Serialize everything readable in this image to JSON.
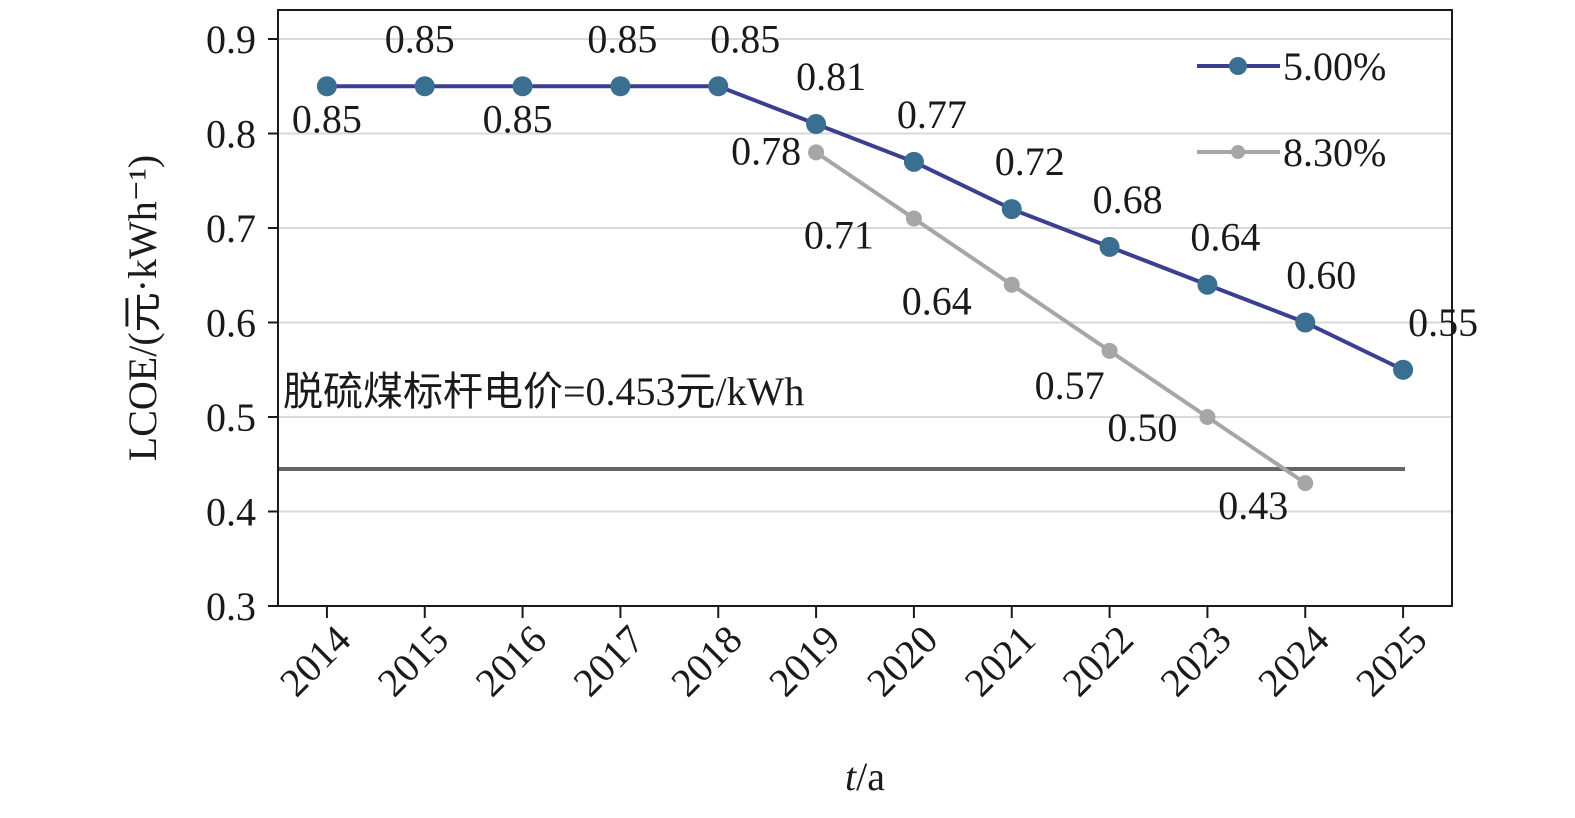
{
  "chart_data": {
    "type": "line",
    "xlabel": "t/a",
    "xlabel_italic": "t",
    "xlabel_rest": "/a",
    "ylabel": "LCOE/(元·kWh⁻¹)",
    "ylim": [
      0.3,
      0.9
    ],
    "yticks": [
      "0.3",
      "0.4",
      "0.5",
      "0.6",
      "0.7",
      "0.8",
      "0.9"
    ],
    "categories": [
      "2014",
      "2015",
      "2016",
      "2017",
      "2018",
      "2019",
      "2020",
      "2021",
      "2022",
      "2023",
      "2024",
      "2025"
    ],
    "grid": true,
    "legend": "top-right",
    "series": [
      {
        "name": "5.00%",
        "color": "#3b3f91",
        "marker_color": "#3a6f92",
        "x": [
          "2014",
          "2015",
          "2016",
          "2017",
          "2018",
          "2019",
          "2020",
          "2021",
          "2022",
          "2023",
          "2024",
          "2025"
        ],
        "values": [
          0.85,
          0.85,
          0.85,
          0.85,
          0.85,
          0.81,
          0.77,
          0.72,
          0.68,
          0.64,
          0.6,
          0.55
        ],
        "labels": [
          "0.85",
          "0.85",
          "0.85",
          "0.85",
          "0.85",
          "0.81",
          "0.77",
          "0.72",
          "0.68",
          "0.64",
          "0.60",
          "0.55"
        ]
      },
      {
        "name": "8.30%",
        "color": "#a6a6a6",
        "marker_color": "#a6a6a6",
        "x": [
          "2019",
          "2020",
          "2021",
          "2022",
          "2023",
          "2024"
        ],
        "values": [
          0.78,
          0.71,
          0.64,
          0.57,
          0.5,
          0.43
        ],
        "labels": [
          "0.78",
          "0.71",
          "0.64",
          "0.57",
          "0.50",
          "0.43"
        ]
      }
    ],
    "reference_line": {
      "value": 0.453,
      "label": "脱硫煤标杆电价=0.453元/kWh",
      "color": "#666666"
    }
  }
}
